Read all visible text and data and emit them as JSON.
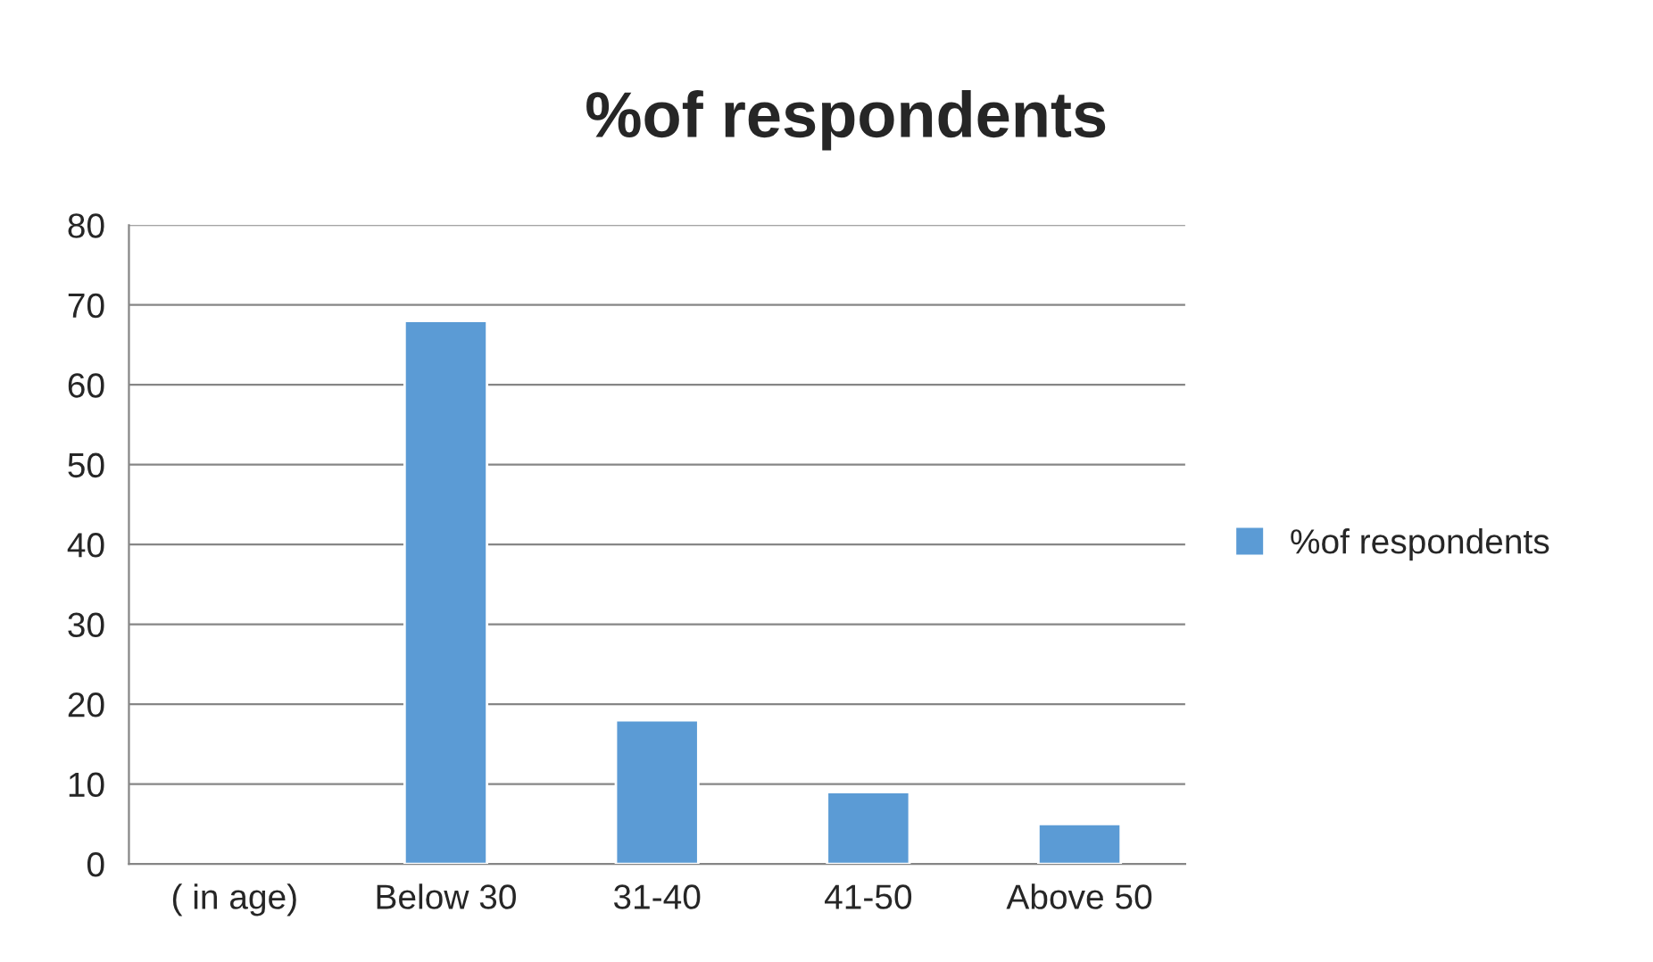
{
  "chart_data": {
    "type": "bar",
    "title": "%of respondents",
    "categories": [
      "( in age)",
      "Below 30",
      "31-40",
      "41-50",
      "Above 50"
    ],
    "series": [
      {
        "name": "%of respondents",
        "color": "#5b9bd5",
        "values": [
          null,
          68,
          18,
          9,
          5
        ]
      }
    ],
    "ylim": [
      0,
      80
    ],
    "yticks": [
      0,
      10,
      20,
      30,
      40,
      50,
      60,
      70,
      80
    ],
    "grid": "y",
    "legend": "right"
  }
}
